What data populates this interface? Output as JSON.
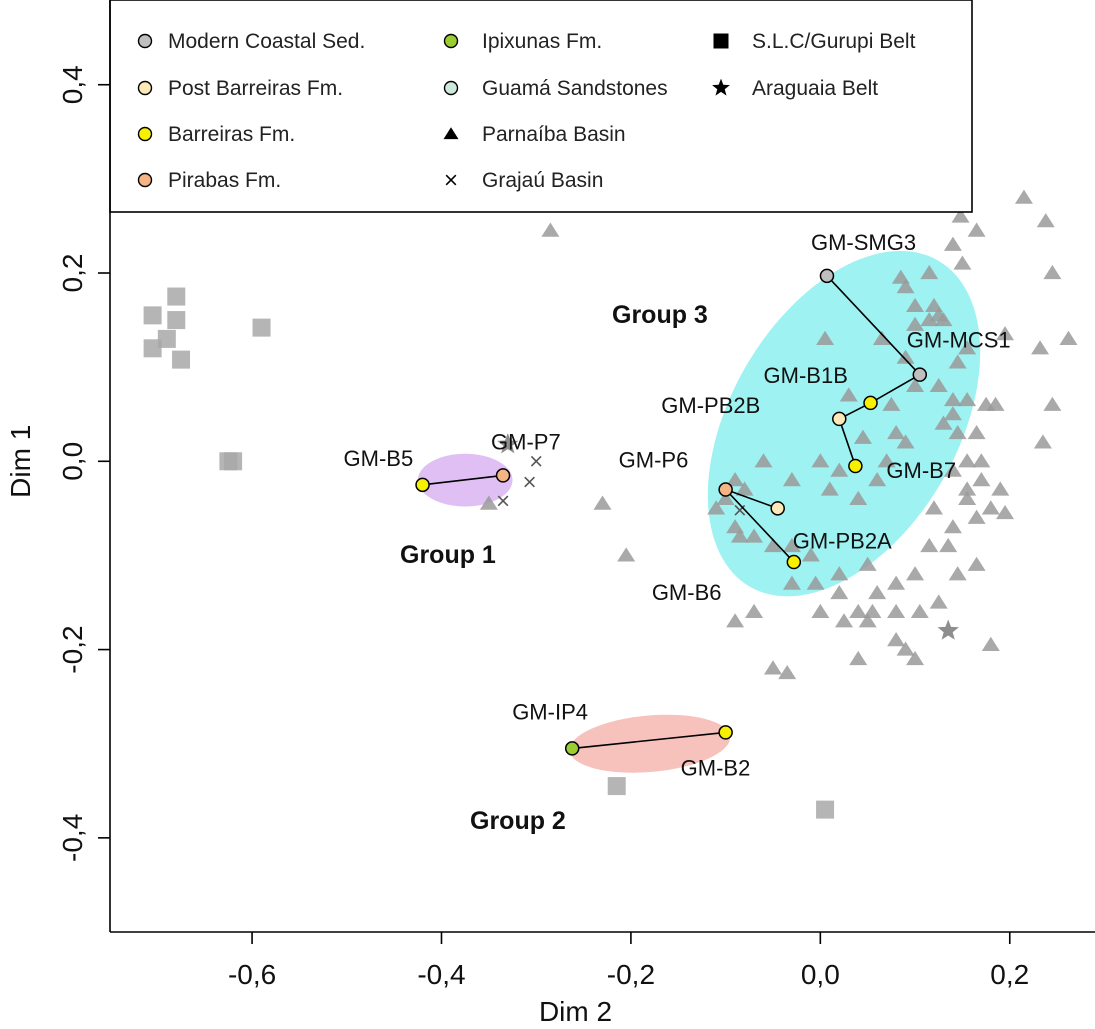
{
  "chart_data": {
    "type": "scatter",
    "title": "",
    "xlabel": "Dim 2",
    "ylabel": "Dim 1",
    "xlim": [
      -0.75,
      0.29
    ],
    "ylim": [
      -0.5,
      0.49
    ],
    "x_ticks": [
      -0.6,
      -0.4,
      -0.2,
      0.0,
      0.2
    ],
    "x_tick_labels": [
      "-0,6",
      "-0,4",
      "-0,2",
      "0,0",
      "0,2"
    ],
    "y_ticks": [
      -0.4,
      -0.2,
      0.0,
      0.2,
      0.4
    ],
    "y_tick_labels": [
      "-0,4",
      "-0,2",
      "0,0",
      "0,2",
      "0,4"
    ],
    "grid": false,
    "legend_position": "top-left",
    "legend": [
      {
        "label": "Modern Coastal Sed.",
        "marker": "circle",
        "color": "#bfbfbf"
      },
      {
        "label": "Post Barreiras Fm.",
        "marker": "circle",
        "color": "#fde8b8"
      },
      {
        "label": "Barreiras Fm.",
        "marker": "circle",
        "color": "#f7f000"
      },
      {
        "label": "Pirabas Fm.",
        "marker": "circle",
        "color": "#f4b483"
      },
      {
        "label": "Ipixunas Fm.",
        "marker": "circle",
        "color": "#9acd32"
      },
      {
        "label": "Guamá Sandstones",
        "marker": "circle",
        "color": "#cfe8dc"
      },
      {
        "label": "Parnaíba Basin",
        "marker": "triangle",
        "color": "#000000"
      },
      {
        "label": "Grajaú Basin",
        "marker": "x",
        "color": "#000000"
      },
      {
        "label": "S.L.C/Gurupi Belt",
        "marker": "square",
        "color": "#000000"
      },
      {
        "label": "Araguaia Belt",
        "marker": "star",
        "color": "#000000"
      }
    ],
    "groups": [
      {
        "label": "Group 1",
        "fill": "#d9b4f2",
        "center": [
          -0.375,
          -0.02
        ],
        "radii": [
          0.05,
          0.028
        ],
        "angle": 0
      },
      {
        "label": "Group 2",
        "fill": "#f6b6b0",
        "center": [
          -0.18,
          -0.3
        ],
        "radii": [
          0.085,
          0.03
        ],
        "angle": -5
      },
      {
        "label": "Group 3",
        "fill": "#8ef0f0",
        "center": [
          0.025,
          0.04
        ],
        "radii": [
          0.12,
          0.2
        ],
        "angle": 30
      }
    ],
    "series": [
      {
        "name": "Parnaíba Basin",
        "marker": "triangle",
        "color": "#9a9a9a",
        "points": [
          [
            -0.285,
            0.245
          ],
          [
            0.085,
            0.195
          ],
          [
            0.09,
            0.185
          ],
          [
            0.1,
            0.165
          ],
          [
            0.115,
            0.2
          ],
          [
            0.12,
            0.165
          ],
          [
            0.125,
            0.155
          ],
          [
            0.1,
            0.145
          ],
          [
            0.115,
            0.15
          ],
          [
            0.13,
            0.15
          ],
          [
            0.15,
            0.21
          ],
          [
            0.148,
            0.26
          ],
          [
            0.14,
            0.23
          ],
          [
            0.125,
            0.28
          ],
          [
            0.165,
            0.245
          ],
          [
            0.215,
            0.28
          ],
          [
            0.238,
            0.255
          ],
          [
            0.245,
            0.2
          ],
          [
            0.262,
            0.13
          ],
          [
            0.232,
            0.12
          ],
          [
            0.245,
            0.06
          ],
          [
            0.235,
            0.02
          ],
          [
            0.195,
            0.135
          ],
          [
            0.155,
            0.12
          ],
          [
            0.145,
            0.105
          ],
          [
            0.125,
            0.08
          ],
          [
            0.14,
            0.065
          ],
          [
            0.14,
            0.05
          ],
          [
            0.155,
            0.065
          ],
          [
            0.13,
            0.04
          ],
          [
            0.145,
            0.03
          ],
          [
            0.175,
            0.06
          ],
          [
            0.185,
            0.06
          ],
          [
            0.165,
            0.03
          ],
          [
            0.17,
            0.0
          ],
          [
            0.155,
            0.0
          ],
          [
            0.14,
            -0.01
          ],
          [
            0.155,
            -0.03
          ],
          [
            0.155,
            -0.04
          ],
          [
            0.17,
            -0.02
          ],
          [
            0.165,
            -0.06
          ],
          [
            0.18,
            -0.05
          ],
          [
            0.19,
            -0.03
          ],
          [
            0.195,
            -0.055
          ],
          [
            0.14,
            -0.07
          ],
          [
            0.12,
            -0.05
          ],
          [
            0.115,
            -0.09
          ],
          [
            0.135,
            -0.09
          ],
          [
            0.145,
            -0.12
          ],
          [
            0.165,
            -0.11
          ],
          [
            0.09,
            0.11
          ],
          [
            0.1,
            0.08
          ],
          [
            0.075,
            0.06
          ],
          [
            0.08,
            0.03
          ],
          [
            0.09,
            0.02
          ],
          [
            0.07,
            0.0
          ],
          [
            0.06,
            -0.02
          ],
          [
            0.04,
            -0.04
          ],
          [
            0.02,
            -0.01
          ],
          [
            0.01,
            -0.03
          ],
          [
            0.0,
            0.0
          ],
          [
            -0.03,
            -0.02
          ],
          [
            -0.06,
            0.0
          ],
          [
            -0.08,
            -0.03
          ],
          [
            -0.09,
            -0.02
          ],
          [
            -0.1,
            -0.04
          ],
          [
            -0.11,
            -0.05
          ],
          [
            -0.09,
            -0.07
          ],
          [
            -0.085,
            -0.08
          ],
          [
            -0.07,
            -0.08
          ],
          [
            -0.05,
            -0.09
          ],
          [
            -0.03,
            -0.09
          ],
          [
            -0.01,
            -0.1
          ],
          [
            0.02,
            -0.12
          ],
          [
            0.05,
            -0.11
          ],
          [
            0.08,
            -0.13
          ],
          [
            0.1,
            -0.12
          ],
          [
            0.06,
            -0.14
          ],
          [
            0.02,
            -0.14
          ],
          [
            -0.005,
            -0.13
          ],
          [
            -0.03,
            -0.13
          ],
          [
            -0.07,
            -0.16
          ],
          [
            -0.09,
            -0.17
          ],
          [
            0.0,
            -0.16
          ],
          [
            0.04,
            -0.16
          ],
          [
            0.025,
            -0.17
          ],
          [
            0.055,
            -0.16
          ],
          [
            0.05,
            -0.17
          ],
          [
            0.08,
            -0.16
          ],
          [
            0.105,
            -0.16
          ],
          [
            0.125,
            -0.15
          ],
          [
            0.04,
            -0.21
          ],
          [
            0.08,
            -0.19
          ],
          [
            0.09,
            -0.2
          ],
          [
            -0.05,
            -0.22
          ],
          [
            -0.035,
            -0.225
          ],
          [
            0.1,
            -0.21
          ],
          [
            0.18,
            -0.195
          ],
          [
            -0.23,
            -0.045
          ],
          [
            -0.205,
            -0.1
          ],
          [
            -0.35,
            -0.045
          ],
          [
            0.005,
            0.13
          ],
          [
            0.03,
            0.07
          ],
          [
            0.065,
            0.13
          ],
          [
            0.045,
            0.025
          ]
        ]
      },
      {
        "name": "S.L.C/Gurupi Belt",
        "marker": "square",
        "color": "#a8a8a8",
        "points": [
          [
            -0.705,
            0.155
          ],
          [
            -0.705,
            0.12
          ],
          [
            -0.69,
            0.13
          ],
          [
            -0.68,
            0.175
          ],
          [
            -0.68,
            0.15
          ],
          [
            -0.675,
            0.108
          ],
          [
            -0.59,
            0.142
          ],
          [
            -0.625,
            0.0
          ],
          [
            -0.62,
            0.0
          ],
          [
            -0.215,
            -0.345
          ],
          [
            0.005,
            -0.37
          ]
        ]
      },
      {
        "name": "Grajaú Basin",
        "marker": "x",
        "color": "#555555",
        "points": [
          [
            -0.3,
            0.0
          ],
          [
            -0.307,
            -0.022
          ],
          [
            -0.335,
            -0.042
          ],
          [
            -0.085,
            -0.052
          ]
        ]
      },
      {
        "name": "Araguaia Belt",
        "marker": "star",
        "color": "#7a7a7a",
        "points": [
          [
            0.135,
            -0.18
          ],
          [
            -0.33,
            0.018
          ]
        ]
      }
    ],
    "samples": [
      {
        "label": "GM-B5",
        "x": -0.42,
        "y": -0.025,
        "formation": "Barreiras Fm.",
        "color": "#f7f000"
      },
      {
        "label": "GM-P7",
        "x": -0.335,
        "y": -0.015,
        "formation": "Pirabas Fm.",
        "color": "#f4b483"
      },
      {
        "label": "GM-IP4",
        "x": -0.262,
        "y": -0.305,
        "formation": "Ipixunas Fm.",
        "color": "#9acd32"
      },
      {
        "label": "GM-B2",
        "x": -0.1,
        "y": -0.288,
        "formation": "Barreiras Fm.",
        "color": "#f7f000"
      },
      {
        "label": "GM-SMG3",
        "x": 0.007,
        "y": 0.197,
        "formation": "Modern Coastal Sed.",
        "color": "#bfbfbf"
      },
      {
        "label": "GM-MCS1",
        "x": 0.105,
        "y": 0.092,
        "formation": "Modern Coastal Sed.",
        "color": "#bfbfbf"
      },
      {
        "label": "GM-B1B",
        "x": 0.053,
        "y": 0.062,
        "formation": "Barreiras Fm.",
        "color": "#f7f000"
      },
      {
        "label": "GM-PB2B",
        "x": 0.02,
        "y": 0.045,
        "formation": "Post Barreiras Fm.",
        "color": "#fde8b8"
      },
      {
        "label": "GM-B7",
        "x": 0.037,
        "y": -0.005,
        "formation": "Barreiras Fm.",
        "color": "#f7f000"
      },
      {
        "label": "GM-P6",
        "x": -0.1,
        "y": -0.03,
        "formation": "Pirabas Fm.",
        "color": "#f4b483"
      },
      {
        "label": "GM-PB2A",
        "x": -0.045,
        "y": -0.05,
        "formation": "Post Barreiras Fm.",
        "color": "#fde8b8"
      },
      {
        "label": "GM-B6",
        "x": -0.028,
        "y": -0.107,
        "formation": "Barreiras Fm.",
        "color": "#f7f000"
      }
    ],
    "links": [
      [
        "GM-B5",
        "GM-P7"
      ],
      [
        "GM-IP4",
        "GM-B2"
      ],
      [
        "GM-SMG3",
        "GM-MCS1"
      ],
      [
        "GM-MCS1",
        "GM-B1B"
      ],
      [
        "GM-B1B",
        "GM-PB2B"
      ],
      [
        "GM-PB2B",
        "GM-B7"
      ],
      [
        "GM-P6",
        "GM-PB2A"
      ],
      [
        "GM-P6",
        "GM-B6"
      ]
    ]
  }
}
